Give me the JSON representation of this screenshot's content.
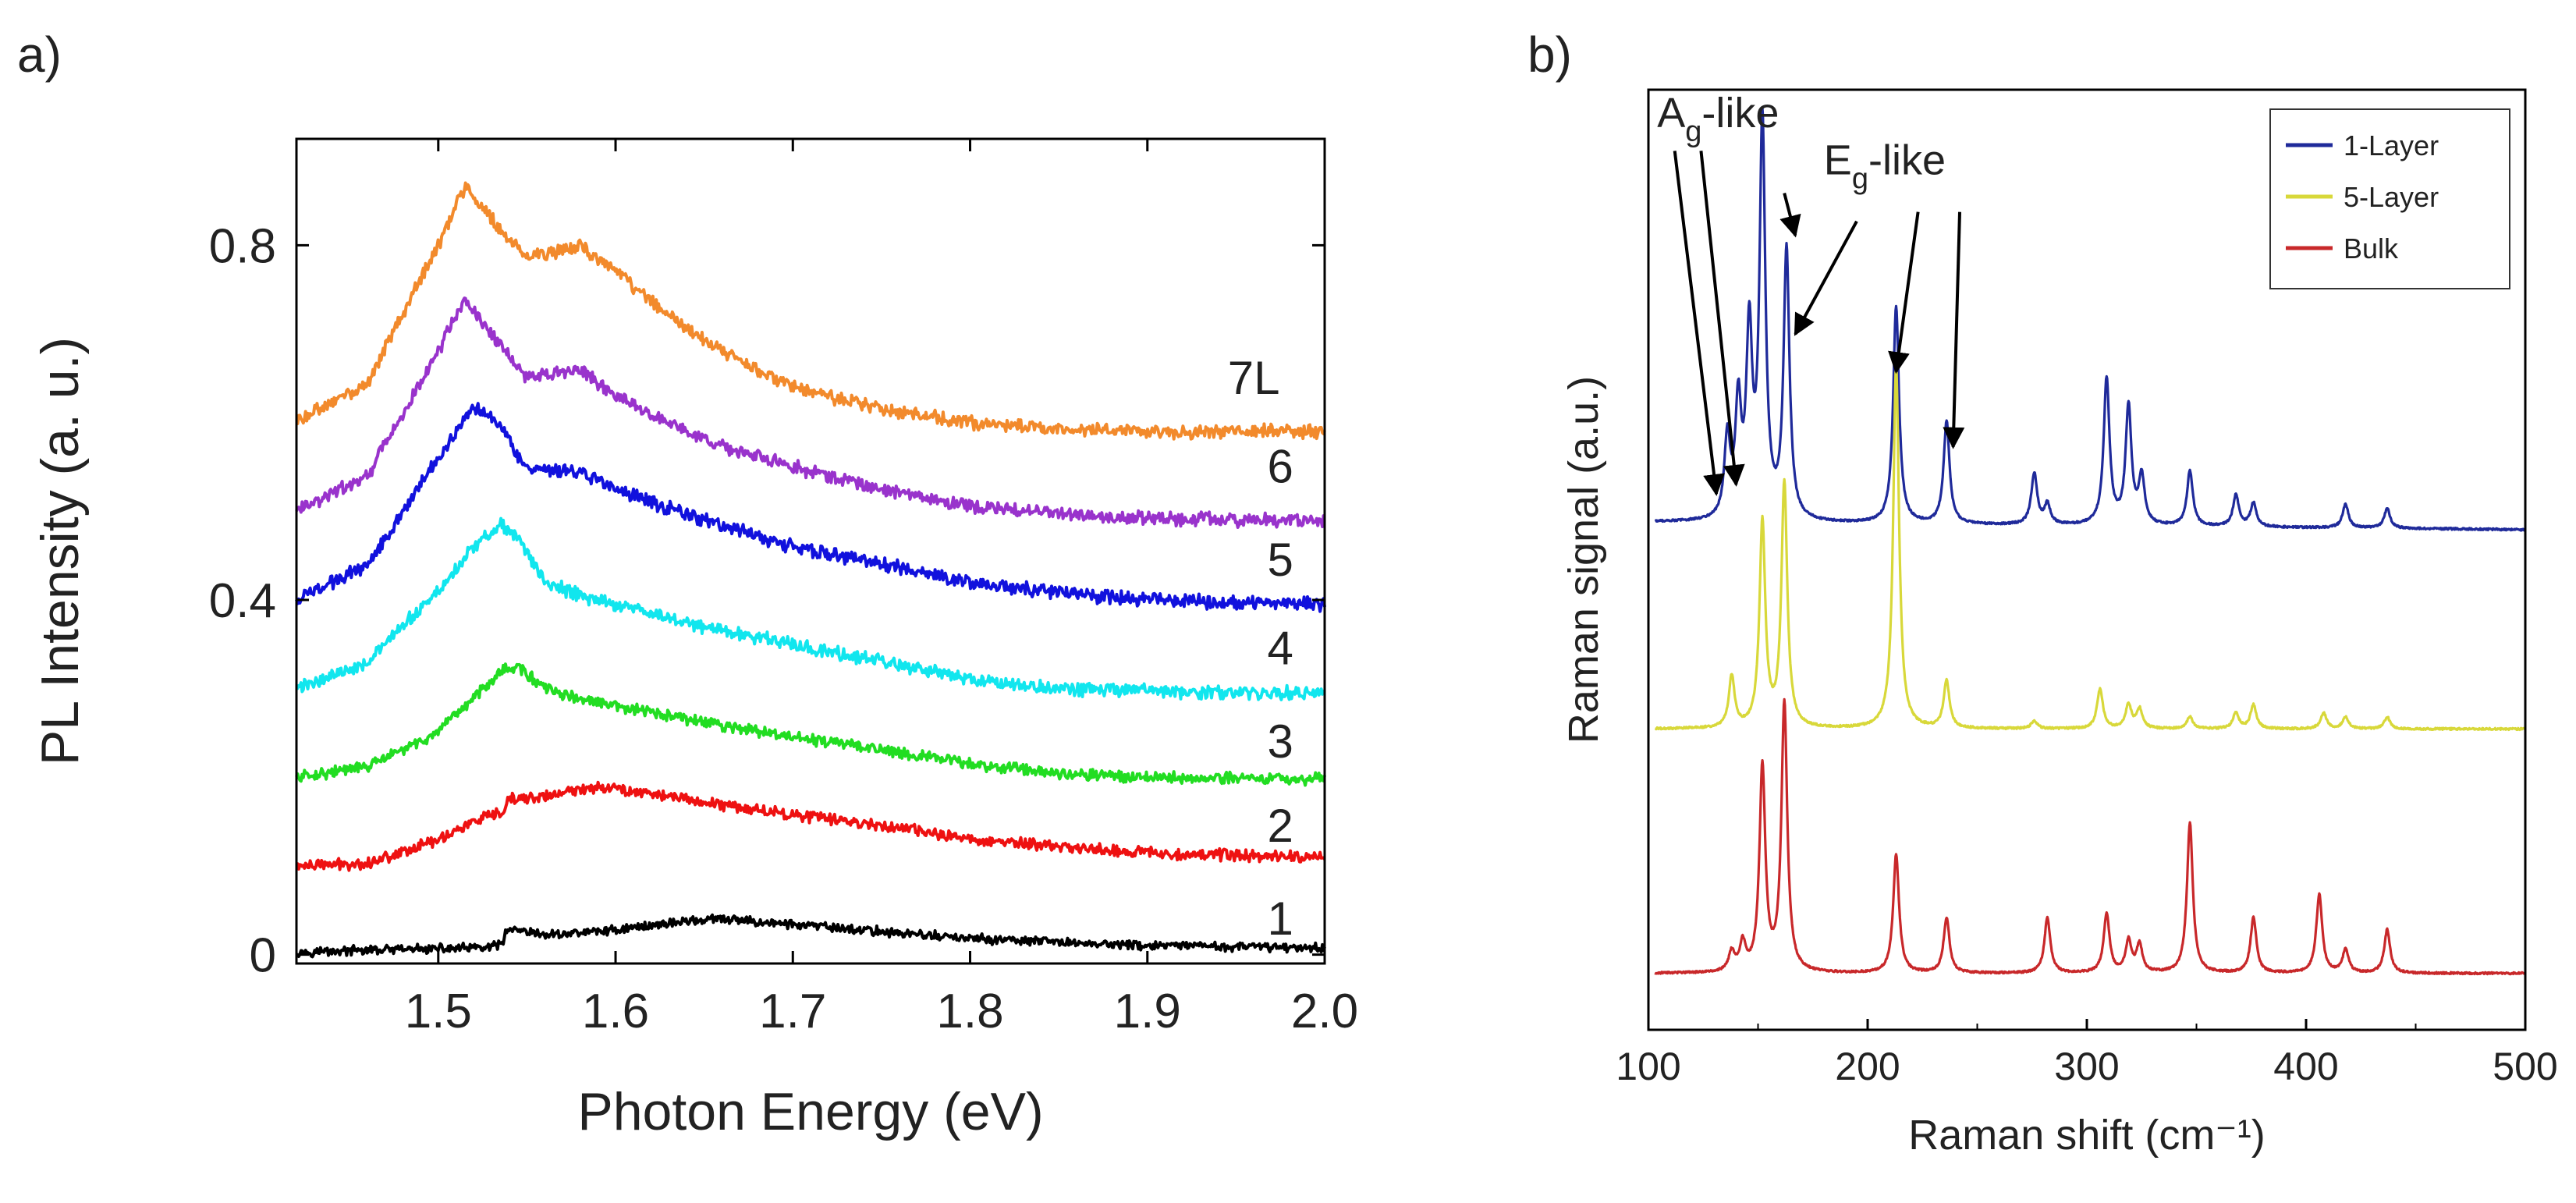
{
  "figure": {
    "panel_a_label": "a)",
    "panel_b_label": "b)"
  },
  "chart_data": [
    {
      "type": "line",
      "title": "",
      "xlabel": "Photon Energy (eV)",
      "ylabel": "PL Intensity (a. u.)",
      "xlim": [
        1.42,
        2.0
      ],
      "ylim": [
        -0.01,
        0.92
      ],
      "xticks": [
        1.5,
        1.6,
        1.7,
        1.8,
        1.9,
        2.0
      ],
      "xtick_labels": [
        "1.5",
        "1.6",
        "1.7",
        "1.8",
        "1.9",
        "2.0"
      ],
      "yticks": [
        0,
        0.4,
        0.8
      ],
      "ytick_labels": [
        "0",
        "0.4",
        "0.8"
      ],
      "grid": false,
      "series": [
        {
          "name": "1",
          "color": "#000000",
          "noise": 0.004,
          "x": [
            1.42,
            1.53,
            1.537,
            1.538,
            1.56,
            1.6,
            1.64,
            1.66,
            1.7,
            1.75,
            1.8,
            1.85,
            1.9,
            1.95,
            2.0
          ],
          "y": [
            0.003,
            0.008,
            0.013,
            0.028,
            0.022,
            0.028,
            0.038,
            0.04,
            0.034,
            0.026,
            0.018,
            0.014,
            0.01,
            0.009,
            0.008
          ]
        },
        {
          "name": "2",
          "color": "#ee1111",
          "noise": 0.005,
          "x": [
            1.42,
            1.46,
            1.5,
            1.52,
            1.537,
            1.54,
            1.56,
            1.59,
            1.62,
            1.65,
            1.7,
            1.75,
            1.8,
            1.85,
            1.9,
            1.95,
            2.0
          ],
          "y": [
            0.1,
            0.103,
            0.13,
            0.15,
            0.16,
            0.175,
            0.178,
            0.19,
            0.182,
            0.172,
            0.158,
            0.146,
            0.13,
            0.122,
            0.115,
            0.112,
            0.11
          ]
        },
        {
          "name": "3",
          "color": "#22dd22",
          "noise": 0.005,
          "x": [
            1.42,
            1.46,
            1.5,
            1.52,
            1.535,
            1.545,
            1.56,
            1.58,
            1.6,
            1.65,
            1.7,
            1.75,
            1.8,
            1.85,
            1.9,
            1.95,
            2.0
          ],
          "y": [
            0.2,
            0.212,
            0.25,
            0.29,
            0.32,
            0.325,
            0.3,
            0.288,
            0.28,
            0.262,
            0.245,
            0.232,
            0.215,
            0.205,
            0.2,
            0.199,
            0.198
          ]
        },
        {
          "name": "4",
          "color": "#11e6ee",
          "noise": 0.006,
          "x": [
            1.42,
            1.46,
            1.5,
            1.52,
            1.535,
            1.545,
            1.56,
            1.58,
            1.6,
            1.65,
            1.7,
            1.75,
            1.8,
            1.85,
            1.9,
            1.95,
            2.0
          ],
          "y": [
            0.3,
            0.33,
            0.41,
            0.46,
            0.485,
            0.47,
            0.42,
            0.405,
            0.395,
            0.37,
            0.35,
            0.33,
            0.31,
            0.3,
            0.297,
            0.295,
            0.295
          ]
        },
        {
          "name": "5",
          "color": "#1111dd",
          "noise": 0.006,
          "x": [
            1.42,
            1.46,
            1.5,
            1.52,
            1.535,
            1.55,
            1.58,
            1.6,
            1.65,
            1.7,
            1.75,
            1.8,
            1.85,
            1.9,
            1.95,
            2.0
          ],
          "y": [
            0.4,
            0.44,
            0.56,
            0.62,
            0.6,
            0.545,
            0.545,
            0.525,
            0.49,
            0.46,
            0.44,
            0.42,
            0.408,
            0.4,
            0.397,
            0.395
          ]
        },
        {
          "name": "6",
          "color": "#9933cc",
          "noise": 0.006,
          "x": [
            1.42,
            1.46,
            1.5,
            1.515,
            1.53,
            1.55,
            1.58,
            1.6,
            1.65,
            1.7,
            1.75,
            1.8,
            1.85,
            1.9,
            1.95,
            2.0
          ],
          "y": [
            0.5,
            0.54,
            0.68,
            0.74,
            0.7,
            0.65,
            0.66,
            0.63,
            0.58,
            0.55,
            0.525,
            0.505,
            0.497,
            0.492,
            0.49,
            0.49
          ]
        },
        {
          "name": "7L",
          "color": "#f28a2c",
          "noise": 0.006,
          "x": [
            1.42,
            1.46,
            1.5,
            1.515,
            1.53,
            1.55,
            1.58,
            1.6,
            1.63,
            1.66,
            1.7,
            1.75,
            1.8,
            1.85,
            1.9,
            1.95,
            2.0
          ],
          "y": [
            0.6,
            0.645,
            0.8,
            0.865,
            0.83,
            0.785,
            0.8,
            0.77,
            0.72,
            0.68,
            0.64,
            0.615,
            0.6,
            0.593,
            0.59,
            0.59,
            0.59
          ]
        }
      ],
      "annotations": [
        {
          "text": "7L",
          "x": 1.96,
          "y": 0.65
        },
        {
          "text": "6",
          "x": 1.975,
          "y": 0.55
        },
        {
          "text": "5",
          "x": 1.975,
          "y": 0.445
        },
        {
          "text": "4",
          "x": 1.975,
          "y": 0.345
        },
        {
          "text": "3",
          "x": 1.975,
          "y": 0.24
        },
        {
          "text": "2",
          "x": 1.975,
          "y": 0.145
        },
        {
          "text": "1",
          "x": 1.975,
          "y": 0.04
        }
      ]
    },
    {
      "type": "line",
      "title": "",
      "xlabel": "Raman shift (cm⁻¹)",
      "ylabel": "Raman signal (a.u.)",
      "xlim": [
        100,
        500
      ],
      "ylim": [
        0,
        1
      ],
      "xticks": [
        100,
        200,
        300,
        400,
        500
      ],
      "xtick_labels": [
        "100",
        "200",
        "300",
        "400",
        "500"
      ],
      "grid": false,
      "legend": {
        "position": "top-right",
        "entries": [
          "1-Layer",
          "5-Layer",
          "Bulk"
        ]
      },
      "series": [
        {
          "name": "1-Layer",
          "color": "#1f2a9a",
          "baseline": 0.54,
          "slope": -2e-05,
          "scale": 0.42,
          "peaks": [
            [
              136,
              0.2
            ],
            [
              141,
              0.28
            ],
            [
              146,
              0.46
            ],
            [
              152,
              1.0
            ],
            [
              163,
              0.68
            ],
            [
              213,
              0.55
            ],
            [
              236,
              0.26
            ],
            [
              276,
              0.13
            ],
            [
              282,
              0.05
            ],
            [
              309,
              0.37
            ],
            [
              319,
              0.3
            ],
            [
              325,
              0.12
            ],
            [
              347,
              0.14
            ],
            [
              368,
              0.08
            ],
            [
              376,
              0.06
            ],
            [
              418,
              0.06
            ],
            [
              437,
              0.05
            ]
          ]
        },
        {
          "name": "5-Layer",
          "color": "#d8d83a",
          "baseline": 0.32,
          "slope": 0,
          "scale": 0.42,
          "peaks": [
            [
              138,
              0.13
            ],
            [
              152,
              0.52
            ],
            [
              162,
              0.62
            ],
            [
              213,
              0.92
            ],
            [
              236,
              0.12
            ],
            [
              276,
              0.02
            ],
            [
              306,
              0.1
            ],
            [
              319,
              0.06
            ],
            [
              324,
              0.05
            ],
            [
              347,
              0.03
            ],
            [
              368,
              0.04
            ],
            [
              376,
              0.06
            ],
            [
              408,
              0.04
            ],
            [
              418,
              0.03
            ],
            [
              437,
              0.03
            ]
          ]
        },
        {
          "name": "Bulk",
          "color": "#c8282a",
          "baseline": 0.06,
          "slope": 0,
          "scale": 0.42,
          "peaks": [
            [
              138,
              0.05
            ],
            [
              143,
              0.07
            ],
            [
              152,
              0.52
            ],
            [
              162,
              0.68
            ],
            [
              213,
              0.3
            ],
            [
              236,
              0.14
            ],
            [
              282,
              0.14
            ],
            [
              309,
              0.15
            ],
            [
              319,
              0.08
            ],
            [
              324,
              0.07
            ],
            [
              347,
              0.38
            ],
            [
              376,
              0.14
            ],
            [
              406,
              0.2
            ],
            [
              418,
              0.06
            ],
            [
              437,
              0.11
            ]
          ]
        }
      ],
      "annotations": [
        {
          "text": "A",
          "sub": "g",
          "suffix": "-like",
          "x": 104,
          "y": 0.96
        },
        {
          "text": "E",
          "sub": "g",
          "suffix": "-like",
          "x": 180,
          "y": 0.91
        }
      ],
      "arrows": [
        {
          "from": [
            112,
            0.935
          ],
          "to": [
            131,
            0.57
          ]
        },
        {
          "from": [
            124,
            0.935
          ],
          "to": [
            140,
            0.58
          ]
        },
        {
          "from": [
            162,
            0.89
          ],
          "to": [
            167,
            0.845
          ]
        },
        {
          "from": [
            195,
            0.86
          ],
          "to": [
            167,
            0.74
          ]
        },
        {
          "from": [
            223,
            0.87
          ],
          "to": [
            213,
            0.7
          ]
        },
        {
          "from": [
            242,
            0.87
          ],
          "to": [
            239,
            0.62
          ]
        }
      ]
    }
  ]
}
